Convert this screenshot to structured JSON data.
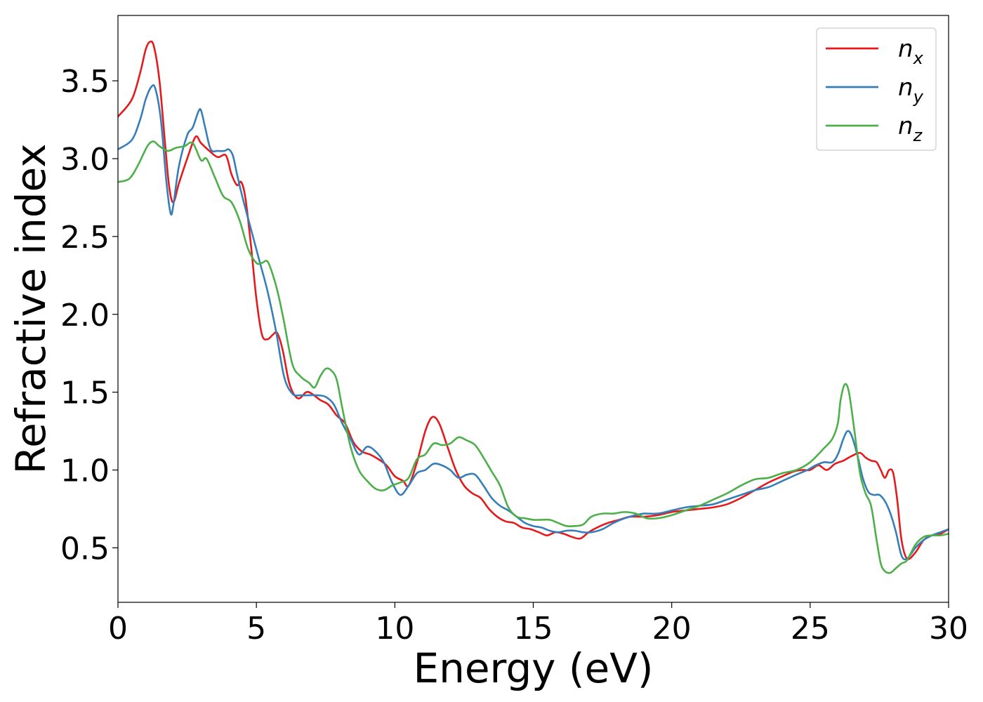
{
  "chart_data": {
    "type": "line",
    "xlabel": "Energy (eV)",
    "ylabel": "Refractive index",
    "xlim": [
      0,
      30
    ],
    "ylim": [
      0.15,
      3.92
    ],
    "xticks": [
      0,
      5,
      10,
      15,
      20,
      25,
      30
    ],
    "yticks": [
      0.5,
      1.0,
      1.5,
      2.0,
      2.5,
      3.0,
      3.5
    ],
    "xtick_labels": [
      "0",
      "5",
      "10",
      "15",
      "20",
      "25",
      "30"
    ],
    "ytick_labels": [
      "0.5",
      "1.0",
      "1.5",
      "2.0",
      "2.5",
      "3.0",
      "3.5"
    ],
    "grid": false,
    "legend_position": "top-right",
    "series": [
      {
        "name": "n",
        "subscript": "x",
        "color": "#e41a1c",
        "x": [
          0,
          0.5,
          0.8,
          1.0,
          1.15,
          1.3,
          1.5,
          1.7,
          1.85,
          2.0,
          2.2,
          2.5,
          2.8,
          3.0,
          3.3,
          3.6,
          3.9,
          4.1,
          4.3,
          4.45,
          4.6,
          4.8,
          5.0,
          5.2,
          5.4,
          5.6,
          5.75,
          5.95,
          6.2,
          6.5,
          6.8,
          7.0,
          7.3,
          7.6,
          7.9,
          8.2,
          8.5,
          8.8,
          9.1,
          9.4,
          9.7,
          10.0,
          10.3,
          10.5,
          10.8,
          11.1,
          11.35,
          11.6,
          11.9,
          12.2,
          12.5,
          12.8,
          13.1,
          13.4,
          13.7,
          14.0,
          14.3,
          14.6,
          14.9,
          15.2,
          15.5,
          15.8,
          16.1,
          16.4,
          16.7,
          17.0,
          17.3,
          17.7,
          18.1,
          18.5,
          19.0,
          19.5,
          20.0,
          20.5,
          21.0,
          21.5,
          22.0,
          22.5,
          23.0,
          23.5,
          24.0,
          24.4,
          24.7,
          25.0,
          25.3,
          25.6,
          25.9,
          26.2,
          26.5,
          26.8,
          27.0,
          27.2,
          27.4,
          27.55,
          27.7,
          27.85,
          28.0,
          28.15,
          28.3,
          28.5,
          28.8,
          29.1,
          29.4,
          29.7,
          30.0
        ],
        "y": [
          3.27,
          3.38,
          3.55,
          3.7,
          3.75,
          3.72,
          3.5,
          3.1,
          2.82,
          2.72,
          2.84,
          3.0,
          3.14,
          3.1,
          3.05,
          3.01,
          3.02,
          2.9,
          2.83,
          2.85,
          2.75,
          2.45,
          2.1,
          1.87,
          1.84,
          1.87,
          1.88,
          1.77,
          1.55,
          1.46,
          1.5,
          1.49,
          1.45,
          1.42,
          1.35,
          1.3,
          1.18,
          1.12,
          1.1,
          1.07,
          1.03,
          0.96,
          0.93,
          0.9,
          1.05,
          1.25,
          1.34,
          1.3,
          1.15,
          1.0,
          0.9,
          0.85,
          0.82,
          0.75,
          0.7,
          0.67,
          0.66,
          0.63,
          0.62,
          0.6,
          0.58,
          0.6,
          0.59,
          0.57,
          0.56,
          0.6,
          0.63,
          0.66,
          0.68,
          0.7,
          0.7,
          0.71,
          0.73,
          0.74,
          0.75,
          0.76,
          0.78,
          0.82,
          0.87,
          0.92,
          0.96,
          0.99,
          1.0,
          1.0,
          1.03,
          1.0,
          1.04,
          1.06,
          1.09,
          1.11,
          1.08,
          1.06,
          1.05,
          1.0,
          0.95,
          1.0,
          0.98,
          0.8,
          0.55,
          0.43,
          0.47,
          0.55,
          0.58,
          0.59,
          0.62
        ]
      },
      {
        "name": "n",
        "subscript": "y",
        "color": "#377eb8",
        "x": [
          0,
          0.5,
          0.8,
          1.0,
          1.2,
          1.35,
          1.55,
          1.75,
          1.9,
          2.0,
          2.2,
          2.5,
          2.7,
          2.9,
          3.0,
          3.15,
          3.35,
          3.6,
          3.85,
          4.0,
          4.15,
          4.3,
          4.5,
          4.8,
          5.1,
          5.4,
          5.7,
          6.0,
          6.3,
          6.6,
          6.9,
          7.2,
          7.5,
          7.8,
          8.1,
          8.4,
          8.7,
          9.0,
          9.3,
          9.6,
          9.9,
          10.2,
          10.5,
          10.8,
          11.1,
          11.4,
          11.7,
          12.0,
          12.3,
          12.6,
          12.9,
          13.2,
          13.5,
          13.8,
          14.1,
          14.4,
          14.7,
          15.0,
          15.3,
          15.6,
          15.9,
          16.2,
          16.5,
          16.8,
          17.1,
          17.5,
          17.9,
          18.3,
          18.7,
          19.0,
          19.5,
          20.0,
          20.5,
          21.0,
          21.5,
          22.0,
          22.5,
          23.0,
          23.5,
          24.0,
          24.5,
          24.9,
          25.2,
          25.5,
          25.8,
          26.0,
          26.2,
          26.35,
          26.5,
          26.7,
          26.9,
          27.1,
          27.3,
          27.5,
          27.7,
          27.9,
          28.1,
          28.3,
          28.5,
          28.8,
          29.1,
          29.4,
          29.7,
          30.0
        ],
        "y": [
          3.06,
          3.12,
          3.25,
          3.38,
          3.46,
          3.45,
          3.25,
          2.85,
          2.65,
          2.7,
          2.95,
          3.15,
          3.2,
          3.3,
          3.31,
          3.2,
          3.06,
          3.05,
          3.05,
          3.06,
          3.02,
          2.9,
          2.75,
          2.55,
          2.35,
          2.15,
          1.9,
          1.6,
          1.49,
          1.48,
          1.48,
          1.48,
          1.47,
          1.42,
          1.3,
          1.2,
          1.1,
          1.15,
          1.12,
          1.05,
          0.92,
          0.84,
          0.9,
          0.98,
          1.0,
          1.04,
          1.03,
          1.0,
          0.95,
          0.97,
          0.97,
          0.9,
          0.82,
          0.77,
          0.74,
          0.7,
          0.66,
          0.64,
          0.63,
          0.61,
          0.6,
          0.61,
          0.61,
          0.6,
          0.6,
          0.62,
          0.66,
          0.69,
          0.71,
          0.72,
          0.72,
          0.74,
          0.76,
          0.77,
          0.78,
          0.81,
          0.84,
          0.87,
          0.89,
          0.93,
          0.97,
          1.0,
          1.03,
          1.05,
          1.05,
          1.1,
          1.2,
          1.25,
          1.22,
          1.1,
          0.95,
          0.86,
          0.84,
          0.84,
          0.8,
          0.72,
          0.6,
          0.45,
          0.43,
          0.5,
          0.55,
          0.58,
          0.6,
          0.62
        ]
      },
      {
        "name": "n",
        "subscript": "z",
        "color": "#4daf4a",
        "x": [
          0,
          0.4,
          0.7,
          1.0,
          1.15,
          1.3,
          1.5,
          1.8,
          2.1,
          2.4,
          2.7,
          3.0,
          3.2,
          3.5,
          3.8,
          4.1,
          4.4,
          4.7,
          5.0,
          5.2,
          5.4,
          5.6,
          5.8,
          6.0,
          6.3,
          6.6,
          6.9,
          7.1,
          7.3,
          7.5,
          7.7,
          7.9,
          8.1,
          8.4,
          8.7,
          9.0,
          9.3,
          9.6,
          9.9,
          10.2,
          10.5,
          10.8,
          11.1,
          11.4,
          11.7,
          12.0,
          12.3,
          12.6,
          12.9,
          13.2,
          13.5,
          13.8,
          14.1,
          14.4,
          14.7,
          15.0,
          15.3,
          15.6,
          15.9,
          16.2,
          16.5,
          16.8,
          17.1,
          17.5,
          17.9,
          18.3,
          18.7,
          19.1,
          19.5,
          20.0,
          20.5,
          21.0,
          21.5,
          22.0,
          22.5,
          23.0,
          23.5,
          24.0,
          24.5,
          25.0,
          25.5,
          25.8,
          26.0,
          26.1,
          26.25,
          26.4,
          26.6,
          26.8,
          27.0,
          27.2,
          27.4,
          27.55,
          27.7,
          27.9,
          28.1,
          28.3,
          28.5,
          28.8,
          29.1,
          29.4,
          29.7,
          30.0
        ],
        "y": [
          2.85,
          2.87,
          2.95,
          3.06,
          3.1,
          3.11,
          3.08,
          3.05,
          3.07,
          3.08,
          3.1,
          2.99,
          3.0,
          2.88,
          2.76,
          2.72,
          2.6,
          2.42,
          2.33,
          2.33,
          2.34,
          2.25,
          2.12,
          1.95,
          1.68,
          1.6,
          1.56,
          1.53,
          1.6,
          1.65,
          1.64,
          1.58,
          1.4,
          1.15,
          1.0,
          0.93,
          0.88,
          0.87,
          0.9,
          0.92,
          0.95,
          1.07,
          1.1,
          1.17,
          1.16,
          1.17,
          1.21,
          1.19,
          1.16,
          1.08,
          0.99,
          0.9,
          0.76,
          0.7,
          0.69,
          0.68,
          0.68,
          0.68,
          0.66,
          0.64,
          0.64,
          0.65,
          0.7,
          0.72,
          0.72,
          0.73,
          0.72,
          0.69,
          0.69,
          0.71,
          0.74,
          0.77,
          0.81,
          0.85,
          0.9,
          0.94,
          0.95,
          0.98,
          1.0,
          1.05,
          1.14,
          1.2,
          1.3,
          1.45,
          1.55,
          1.5,
          1.25,
          0.98,
          0.85,
          0.77,
          0.55,
          0.4,
          0.35,
          0.34,
          0.37,
          0.4,
          0.42,
          0.52,
          0.57,
          0.58,
          0.58,
          0.59
        ]
      }
    ]
  }
}
